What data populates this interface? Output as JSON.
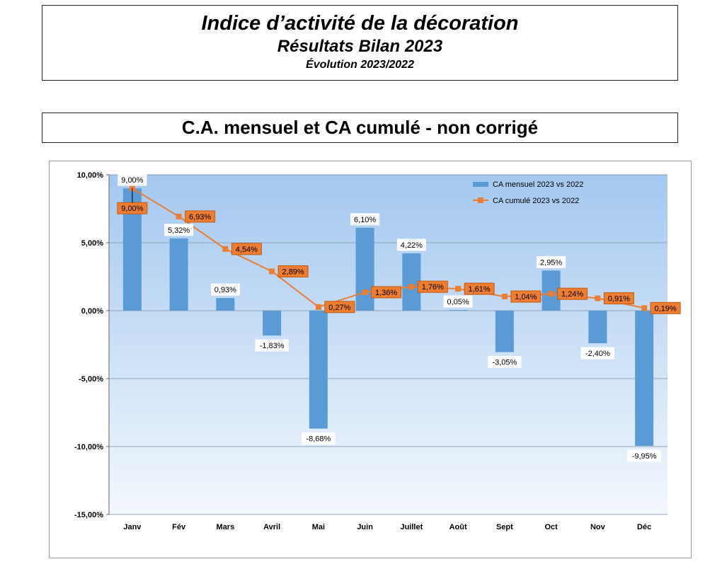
{
  "header": {
    "title": "Indice d’activité de la décoration",
    "subtitle": "Résultats Bilan 2023",
    "period": "Évolution 2023/2022"
  },
  "section": {
    "title": "C.A. mensuel et CA cumulé - non corrigé"
  },
  "colors": {
    "bar": "#5b9bd5",
    "line": "#ed7d31",
    "plot_top": "#a4c8ef",
    "plot_bottom": "#f3f8fd"
  },
  "chart_data": {
    "type": "bar",
    "categories": [
      "Janv",
      "Fév",
      "Mars",
      "Avril",
      "Mai",
      "Juin",
      "Juillet",
      "Août",
      "Sept",
      "Oct",
      "Nov",
      "Déc"
    ],
    "series": [
      {
        "name": "CA mensuel 2023 vs 2022",
        "type": "bar",
        "values": [
          9.0,
          5.32,
          0.93,
          -1.83,
          -8.68,
          6.1,
          4.22,
          0.05,
          -3.05,
          2.95,
          -2.4,
          -9.95
        ],
        "labels": [
          "9,00%",
          "5,32%",
          "0,93%",
          "-1,83%",
          "-8,68%",
          "6,10%",
          "4,22%",
          "0,05%",
          "-3,05%",
          "2,95%",
          "-2,40%",
          "-9,95%"
        ]
      },
      {
        "name": "CA cumulé 2023 vs 2022",
        "type": "line",
        "values": [
          9.0,
          6.93,
          4.54,
          2.89,
          0.27,
          1.36,
          1.76,
          1.61,
          1.04,
          1.24,
          0.91,
          0.19
        ],
        "labels": [
          "9,00%",
          "6,93%",
          "4,54%",
          "2,89%",
          "0,27%",
          "1,36%",
          "1,76%",
          "1,61%",
          "1,04%",
          "1,24%",
          "0,91%",
          "0,19%"
        ]
      }
    ],
    "ylim": [
      -15,
      10
    ],
    "yticks": [
      10,
      5,
      0,
      -5,
      -10,
      -15
    ],
    "ytick_labels": [
      "10,00%",
      "5,00%",
      "0,00%",
      "-5,00%",
      "-10,00%",
      "-15,00%"
    ],
    "legend_position": "top-right",
    "grid": true
  }
}
